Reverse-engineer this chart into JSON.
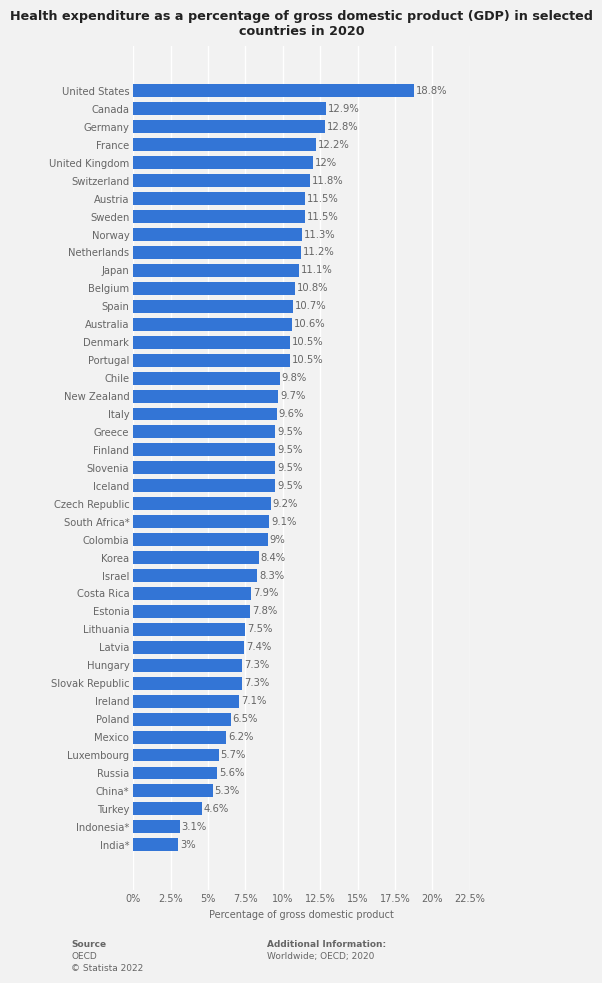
{
  "title": "Health expenditure as a percentage of gross domestic product (GDP) in selected\ncountries in 2020",
  "xlabel": "Percentage of gross domestic product",
  "categories": [
    "United States",
    "Canada",
    "Germany",
    "France",
    "United Kingdom",
    "Switzerland",
    "Austria",
    "Sweden",
    "Norway",
    "Netherlands",
    "Japan",
    "Belgium",
    "Spain",
    "Australia",
    "Denmark",
    "Portugal",
    "Chile",
    "New Zealand",
    "Italy",
    "Greece",
    "Finland",
    "Slovenia",
    "Iceland",
    "Czech Republic",
    "South Africa*",
    "Colombia",
    "Korea",
    "Israel",
    "Costa Rica",
    "Estonia",
    "Lithuania",
    "Latvia",
    "Hungary",
    "Slovak Republic",
    "Ireland",
    "Poland",
    "Mexico",
    "Luxembourg",
    "Russia",
    "China*",
    "Turkey",
    "Indonesia*",
    "India*"
  ],
  "values": [
    18.8,
    12.9,
    12.8,
    12.2,
    12.0,
    11.8,
    11.5,
    11.5,
    11.3,
    11.2,
    11.1,
    10.8,
    10.7,
    10.6,
    10.5,
    10.5,
    9.8,
    9.7,
    9.6,
    9.5,
    9.5,
    9.5,
    9.5,
    9.2,
    9.1,
    9.0,
    8.4,
    8.3,
    7.9,
    7.8,
    7.5,
    7.4,
    7.3,
    7.3,
    7.1,
    6.5,
    6.2,
    5.7,
    5.6,
    5.3,
    4.6,
    3.1,
    3.0
  ],
  "labels": [
    "18.8%",
    "12.9%",
    "12.8%",
    "12.2%",
    "12%",
    "11.8%",
    "11.5%",
    "11.5%",
    "11.3%",
    "11.2%",
    "11.1%",
    "10.8%",
    "10.7%",
    "10.6%",
    "10.5%",
    "10.5%",
    "9.8%",
    "9.7%",
    "9.6%",
    "9.5%",
    "9.5%",
    "9.5%",
    "9.5%",
    "9.2%",
    "9.1%",
    "9%",
    "8.4%",
    "8.3%",
    "7.9%",
    "7.8%",
    "7.5%",
    "7.4%",
    "7.3%",
    "7.3%",
    "7.1%",
    "6.5%",
    "6.2%",
    "5.7%",
    "5.6%",
    "5.3%",
    "4.6%",
    "3.1%",
    "3%"
  ],
  "bar_color": "#3375d6",
  "background_color": "#f2f2f2",
  "grid_color": "#ffffff",
  "text_color": "#666666",
  "title_color": "#222222",
  "xlim": [
    0,
    22.5
  ],
  "xticks": [
    0,
    2.5,
    5.0,
    7.5,
    10.0,
    12.5,
    15.0,
    17.5,
    20.0,
    22.5
  ],
  "xtick_labels": [
    "0%",
    "2.5%",
    "5%",
    "7.5%",
    "10%",
    "12.5%",
    "15%",
    "17.5%",
    "20%",
    "22.5%"
  ],
  "source_line1": "Source",
  "source_line2": "OECD",
  "source_line3": "© Statista 2022",
  "additional_line1": "Additional Information:",
  "additional_line2": "Worldwide; OECD; 2020",
  "title_fontsize": 9.2,
  "label_fontsize": 7.2,
  "tick_fontsize": 7.0,
  "bar_height": 0.72
}
